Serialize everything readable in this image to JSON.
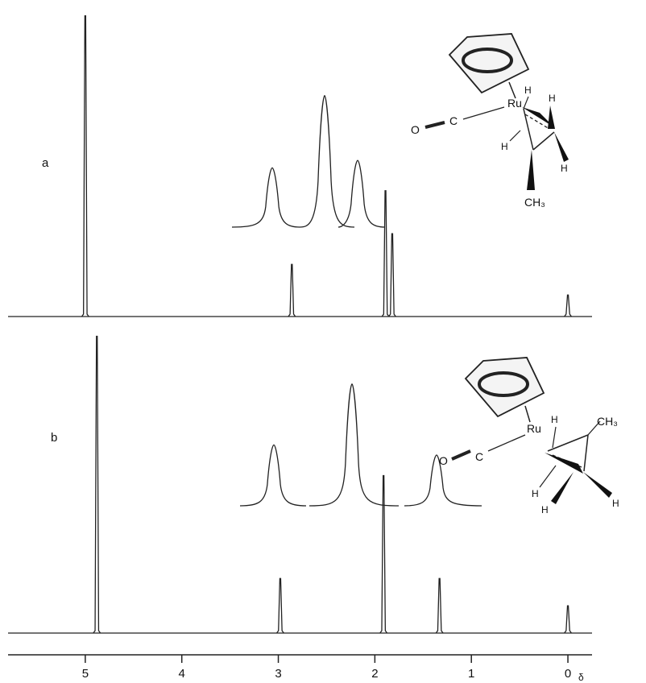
{
  "chart_data": {
    "type": "line",
    "xlabel": "δ",
    "xlim": [
      5.8,
      -0.25
    ],
    "x_ticks": [
      "5",
      "4",
      "3",
      "2",
      "1",
      "0"
    ],
    "panels": [
      {
        "label": "a",
        "peaks": [
          {
            "delta": 5.0,
            "height": 0.98
          },
          {
            "delta": 2.86,
            "height": 0.17
          },
          {
            "delta": 1.89,
            "height": 0.41
          },
          {
            "delta": 1.82,
            "height": 0.27
          },
          {
            "delta": 0.0,
            "height": 0.07
          }
        ],
        "inset": {
          "peaks": [
            {
              "delta": 3.03,
              "height": 0.32
            },
            {
              "delta": 2.56,
              "height": 0.71
            },
            {
              "delta": 2.17,
              "height": 0.36
            }
          ]
        },
        "structure": {
          "atoms": [
            "Ru",
            "O",
            "C",
            "H",
            "H",
            "H",
            "H",
            "CH₃"
          ]
        }
      },
      {
        "label": "b",
        "peaks": [
          {
            "delta": 4.88,
            "height": 0.98
          },
          {
            "delta": 2.98,
            "height": 0.18
          },
          {
            "delta": 1.91,
            "height": 0.52
          },
          {
            "delta": 1.33,
            "height": 0.18
          },
          {
            "delta": 0.0,
            "height": 0.09
          }
        ],
        "inset": {
          "peaks": [
            {
              "delta": 2.99,
              "height": 0.36
            },
            {
              "delta": 2.22,
              "height": 0.72
            },
            {
              "delta": 1.41,
              "height": 0.3
            }
          ]
        },
        "structure": {
          "atoms": [
            "Ru",
            "O",
            "C",
            "H",
            "H",
            "H",
            "H",
            "CH₃"
          ]
        }
      }
    ]
  }
}
